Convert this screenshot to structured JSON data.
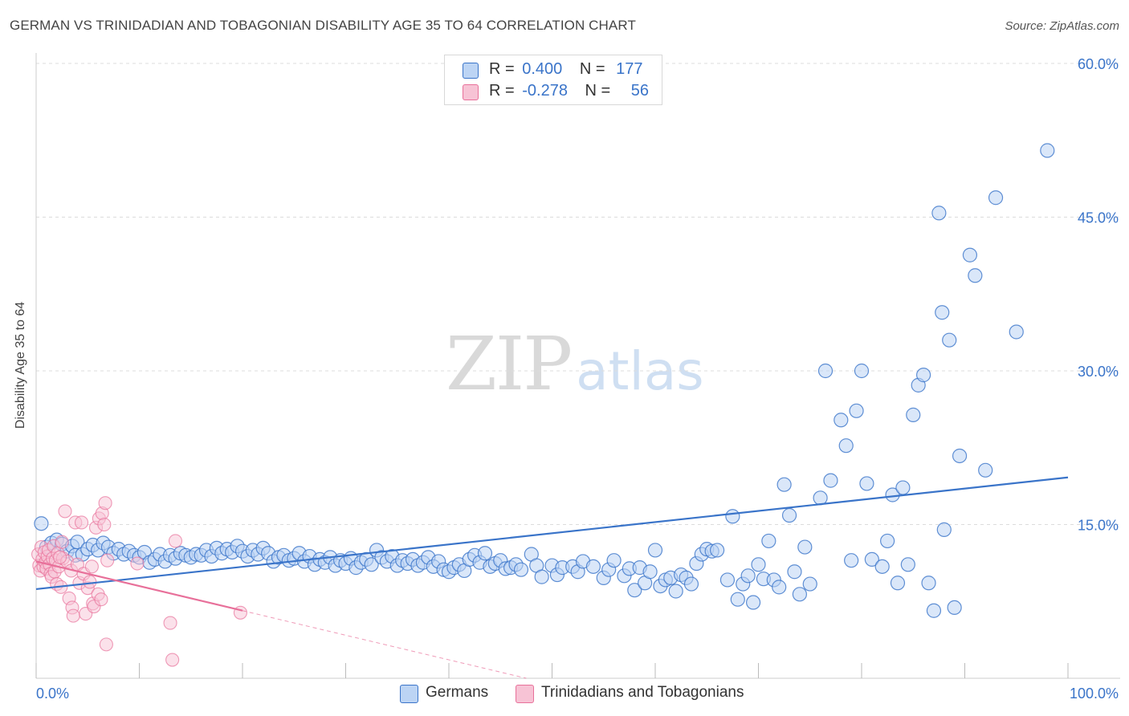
{
  "header": {
    "title": "GERMAN VS TRINIDADIAN AND TOBAGONIAN DISABILITY AGE 35 TO 64 CORRELATION CHART",
    "source": "Source: ZipAtlas.com"
  },
  "watermark": {
    "zip": "ZIP",
    "atlas": "atlas"
  },
  "colors": {
    "blue": "#3a74c9",
    "blue_fill": "#bcd4f4",
    "pink": "#e8709a",
    "pink_fill": "#f7c3d5",
    "grid": "#dcdcdc",
    "tick_label": "#3a74c9"
  },
  "legend": {
    "rows": [
      {
        "r_label": "R =",
        "r_value": "0.400",
        "n_label": "N =",
        "n_value": "177"
      },
      {
        "r_label": "R =",
        "r_value": "-0.278",
        "n_label": "N =",
        "n_value": "56"
      }
    ]
  },
  "bottom_legend": [
    "Germans",
    "Trinidadians and Tobagonians"
  ],
  "chart_data": {
    "type": "scatter",
    "title": "GERMAN VS TRINIDADIAN AND TOBAGONIAN DISABILITY AGE 35 TO 64 CORRELATION CHART",
    "xlabel": "",
    "ylabel": "Disability Age 35 to 64",
    "xlim": [
      0,
      100
    ],
    "ylim": [
      0,
      60
    ],
    "x_tick_labels": [
      "0.0%",
      "100.0%"
    ],
    "y_tick_labels": [
      "15.0%",
      "30.0%",
      "45.0%",
      "60.0%"
    ],
    "y_ticks": [
      15,
      30,
      45,
      60
    ],
    "grid": true,
    "legend_position": "top-center",
    "series": [
      {
        "name": "Germans",
        "R": 0.4,
        "N": 177,
        "trend": {
          "x": [
            0,
            100
          ],
          "y": [
            8.7,
            19.6
          ]
        },
        "points": [
          [
            0.5,
            15.1
          ],
          [
            1,
            12.8
          ],
          [
            1.5,
            13.2
          ],
          [
            2,
            13.5
          ],
          [
            2.5,
            13.1
          ],
          [
            3,
            12.4
          ],
          [
            3.5,
            12.9
          ],
          [
            3.8,
            12.0
          ],
          [
            4,
            13.3
          ],
          [
            4.5,
            12.1
          ],
          [
            5,
            12.6
          ],
          [
            5.5,
            13.0
          ],
          [
            6,
            12.5
          ],
          [
            6.5,
            13.2
          ],
          [
            7,
            12.8
          ],
          [
            7.5,
            12.2
          ],
          [
            8,
            12.6
          ],
          [
            8.5,
            12.1
          ],
          [
            9,
            12.4
          ],
          [
            9.5,
            12.0
          ],
          [
            10,
            11.8
          ],
          [
            10.5,
            12.3
          ],
          [
            11,
            11.3
          ],
          [
            11.5,
            11.6
          ],
          [
            12,
            12.1
          ],
          [
            12.5,
            11.4
          ],
          [
            13,
            12.0
          ],
          [
            13.5,
            11.7
          ],
          [
            14,
            12.2
          ],
          [
            14.5,
            12.0
          ],
          [
            15,
            11.8
          ],
          [
            15.5,
            12.1
          ],
          [
            16,
            12.0
          ],
          [
            16.5,
            12.5
          ],
          [
            17,
            11.9
          ],
          [
            17.5,
            12.7
          ],
          [
            18,
            12.2
          ],
          [
            18.5,
            12.6
          ],
          [
            19,
            12.3
          ],
          [
            19.5,
            12.9
          ],
          [
            20,
            12.4
          ],
          [
            20.5,
            11.9
          ],
          [
            21,
            12.5
          ],
          [
            21.5,
            12.1
          ],
          [
            22,
            12.7
          ],
          [
            22.5,
            12.2
          ],
          [
            23,
            11.4
          ],
          [
            23.5,
            11.8
          ],
          [
            24,
            12.0
          ],
          [
            24.5,
            11.5
          ],
          [
            25,
            11.7
          ],
          [
            25.5,
            12.2
          ],
          [
            26,
            11.4
          ],
          [
            26.5,
            11.9
          ],
          [
            27,
            11.1
          ],
          [
            27.5,
            11.6
          ],
          [
            28,
            11.3
          ],
          [
            28.5,
            11.8
          ],
          [
            29,
            11.0
          ],
          [
            29.5,
            11.5
          ],
          [
            30,
            11.2
          ],
          [
            30.5,
            11.7
          ],
          [
            31,
            10.8
          ],
          [
            31.5,
            11.3
          ],
          [
            32,
            11.6
          ],
          [
            32.5,
            11.1
          ],
          [
            33,
            12.5
          ],
          [
            33.5,
            11.8
          ],
          [
            34,
            11.4
          ],
          [
            34.5,
            11.9
          ],
          [
            35,
            11.0
          ],
          [
            35.5,
            11.5
          ],
          [
            36,
            11.2
          ],
          [
            36.5,
            11.6
          ],
          [
            37,
            11.0
          ],
          [
            37.5,
            11.3
          ],
          [
            38,
            11.8
          ],
          [
            38.5,
            10.9
          ],
          [
            39,
            11.4
          ],
          [
            39.5,
            10.6
          ],
          [
            40,
            10.4
          ],
          [
            40.5,
            10.8
          ],
          [
            41,
            11.1
          ],
          [
            41.5,
            10.5
          ],
          [
            42,
            11.6
          ],
          [
            42.5,
            12.0
          ],
          [
            43,
            11.3
          ],
          [
            43.5,
            12.2
          ],
          [
            44,
            10.9
          ],
          [
            44.5,
            11.2
          ],
          [
            45,
            11.5
          ],
          [
            45.5,
            10.7
          ],
          [
            46,
            10.8
          ],
          [
            46.5,
            11.1
          ],
          [
            47,
            10.6
          ],
          [
            48,
            12.1
          ],
          [
            48.5,
            11.0
          ],
          [
            49,
            9.9
          ],
          [
            50,
            11.0
          ],
          [
            50.5,
            10.1
          ],
          [
            51,
            10.8
          ],
          [
            52,
            10.9
          ],
          [
            52.5,
            10.4
          ],
          [
            53,
            11.4
          ],
          [
            54,
            10.9
          ],
          [
            55,
            9.8
          ],
          [
            55.5,
            10.6
          ],
          [
            56,
            11.5
          ],
          [
            57,
            10.0
          ],
          [
            57.5,
            10.7
          ],
          [
            58,
            8.6
          ],
          [
            58.5,
            10.8
          ],
          [
            59,
            9.3
          ],
          [
            59.5,
            10.4
          ],
          [
            60,
            12.5
          ],
          [
            60.5,
            9.0
          ],
          [
            61,
            9.6
          ],
          [
            61.5,
            9.8
          ],
          [
            62,
            8.5
          ],
          [
            62.5,
            10.1
          ],
          [
            63,
            9.8
          ],
          [
            63.5,
            9.2
          ],
          [
            64,
            11.2
          ],
          [
            64.5,
            12.1
          ],
          [
            65,
            12.6
          ],
          [
            65.5,
            12.4
          ],
          [
            66,
            12.5
          ],
          [
            67,
            9.6
          ],
          [
            67.5,
            15.8
          ],
          [
            68,
            7.7
          ],
          [
            68.5,
            9.2
          ],
          [
            69,
            10.0
          ],
          [
            69.5,
            7.4
          ],
          [
            70,
            11.1
          ],
          [
            70.5,
            9.7
          ],
          [
            71,
            13.4
          ],
          [
            71.5,
            9.6
          ],
          [
            72,
            8.9
          ],
          [
            72.5,
            18.9
          ],
          [
            73,
            15.9
          ],
          [
            73.5,
            10.4
          ],
          [
            74,
            8.2
          ],
          [
            74.5,
            12.8
          ],
          [
            75,
            9.2
          ],
          [
            76,
            17.6
          ],
          [
            76.5,
            30.0
          ],
          [
            77,
            19.3
          ],
          [
            78,
            25.2
          ],
          [
            78.5,
            22.7
          ],
          [
            79,
            11.5
          ],
          [
            79.5,
            26.1
          ],
          [
            80,
            30.0
          ],
          [
            80.5,
            19.0
          ],
          [
            81,
            11.6
          ],
          [
            82,
            10.9
          ],
          [
            82.5,
            13.4
          ],
          [
            83,
            17.9
          ],
          [
            83.5,
            9.3
          ],
          [
            84,
            18.6
          ],
          [
            84.5,
            11.1
          ],
          [
            85,
            25.7
          ],
          [
            85.5,
            28.6
          ],
          [
            86,
            29.6
          ],
          [
            86.5,
            9.3
          ],
          [
            87,
            6.6
          ],
          [
            87.5,
            45.4
          ],
          [
            87.8,
            35.7
          ],
          [
            88,
            14.5
          ],
          [
            88.5,
            33.0
          ],
          [
            89,
            6.9
          ],
          [
            89.5,
            21.7
          ],
          [
            90.5,
            41.3
          ],
          [
            91,
            39.3
          ],
          [
            92,
            20.3
          ],
          [
            93,
            46.9
          ],
          [
            95,
            33.8
          ],
          [
            98,
            51.5
          ]
        ]
      },
      {
        "name": "Trinidadians and Tobagonians",
        "R": -0.278,
        "N": 56,
        "trend": {
          "x": [
            0,
            20
          ],
          "y": [
            11.4,
            6.6
          ]
        },
        "points": [
          [
            0.2,
            12.1
          ],
          [
            0.3,
            11.0
          ],
          [
            0.4,
            10.5
          ],
          [
            0.5,
            12.8
          ],
          [
            0.6,
            11.6
          ],
          [
            0.7,
            10.9
          ],
          [
            0.8,
            12.3
          ],
          [
            0.9,
            11.3
          ],
          [
            1.0,
            10.7
          ],
          [
            1.1,
            11.9
          ],
          [
            1.2,
            12.5
          ],
          [
            1.3,
            11.1
          ],
          [
            1.4,
            10.2
          ],
          [
            1.5,
            9.9
          ],
          [
            1.6,
            11.7
          ],
          [
            1.7,
            12.9
          ],
          [
            1.8,
            10.4
          ],
          [
            1.9,
            11.5
          ],
          [
            2.0,
            9.2
          ],
          [
            2.1,
            12.2
          ],
          [
            2.2,
            10.9
          ],
          [
            2.4,
            8.9
          ],
          [
            2.5,
            13.3
          ],
          [
            2.6,
            11.7
          ],
          [
            2.8,
            16.3
          ],
          [
            3.0,
            11.4
          ],
          [
            3.2,
            7.8
          ],
          [
            3.4,
            10.5
          ],
          [
            3.5,
            6.9
          ],
          [
            3.6,
            6.1
          ],
          [
            3.8,
            15.2
          ],
          [
            4.0,
            11.1
          ],
          [
            4.2,
            9.3
          ],
          [
            4.4,
            15.2
          ],
          [
            4.6,
            10.2
          ],
          [
            4.8,
            6.3
          ],
          [
            5.0,
            8.8
          ],
          [
            5.2,
            9.4
          ],
          [
            5.4,
            10.9
          ],
          [
            5.5,
            7.3
          ],
          [
            5.6,
            7.0
          ],
          [
            5.8,
            14.7
          ],
          [
            6.0,
            8.2
          ],
          [
            6.1,
            15.6
          ],
          [
            6.3,
            7.7
          ],
          [
            6.4,
            16.1
          ],
          [
            6.6,
            15.0
          ],
          [
            6.7,
            17.1
          ],
          [
            6.8,
            3.3
          ],
          [
            6.9,
            11.5
          ],
          [
            9.8,
            11.2
          ],
          [
            13.0,
            5.4
          ],
          [
            13.2,
            1.8
          ],
          [
            13.5,
            13.4
          ],
          [
            19.8,
            6.4
          ],
          [
            2.3,
            11.8
          ]
        ]
      }
    ]
  }
}
